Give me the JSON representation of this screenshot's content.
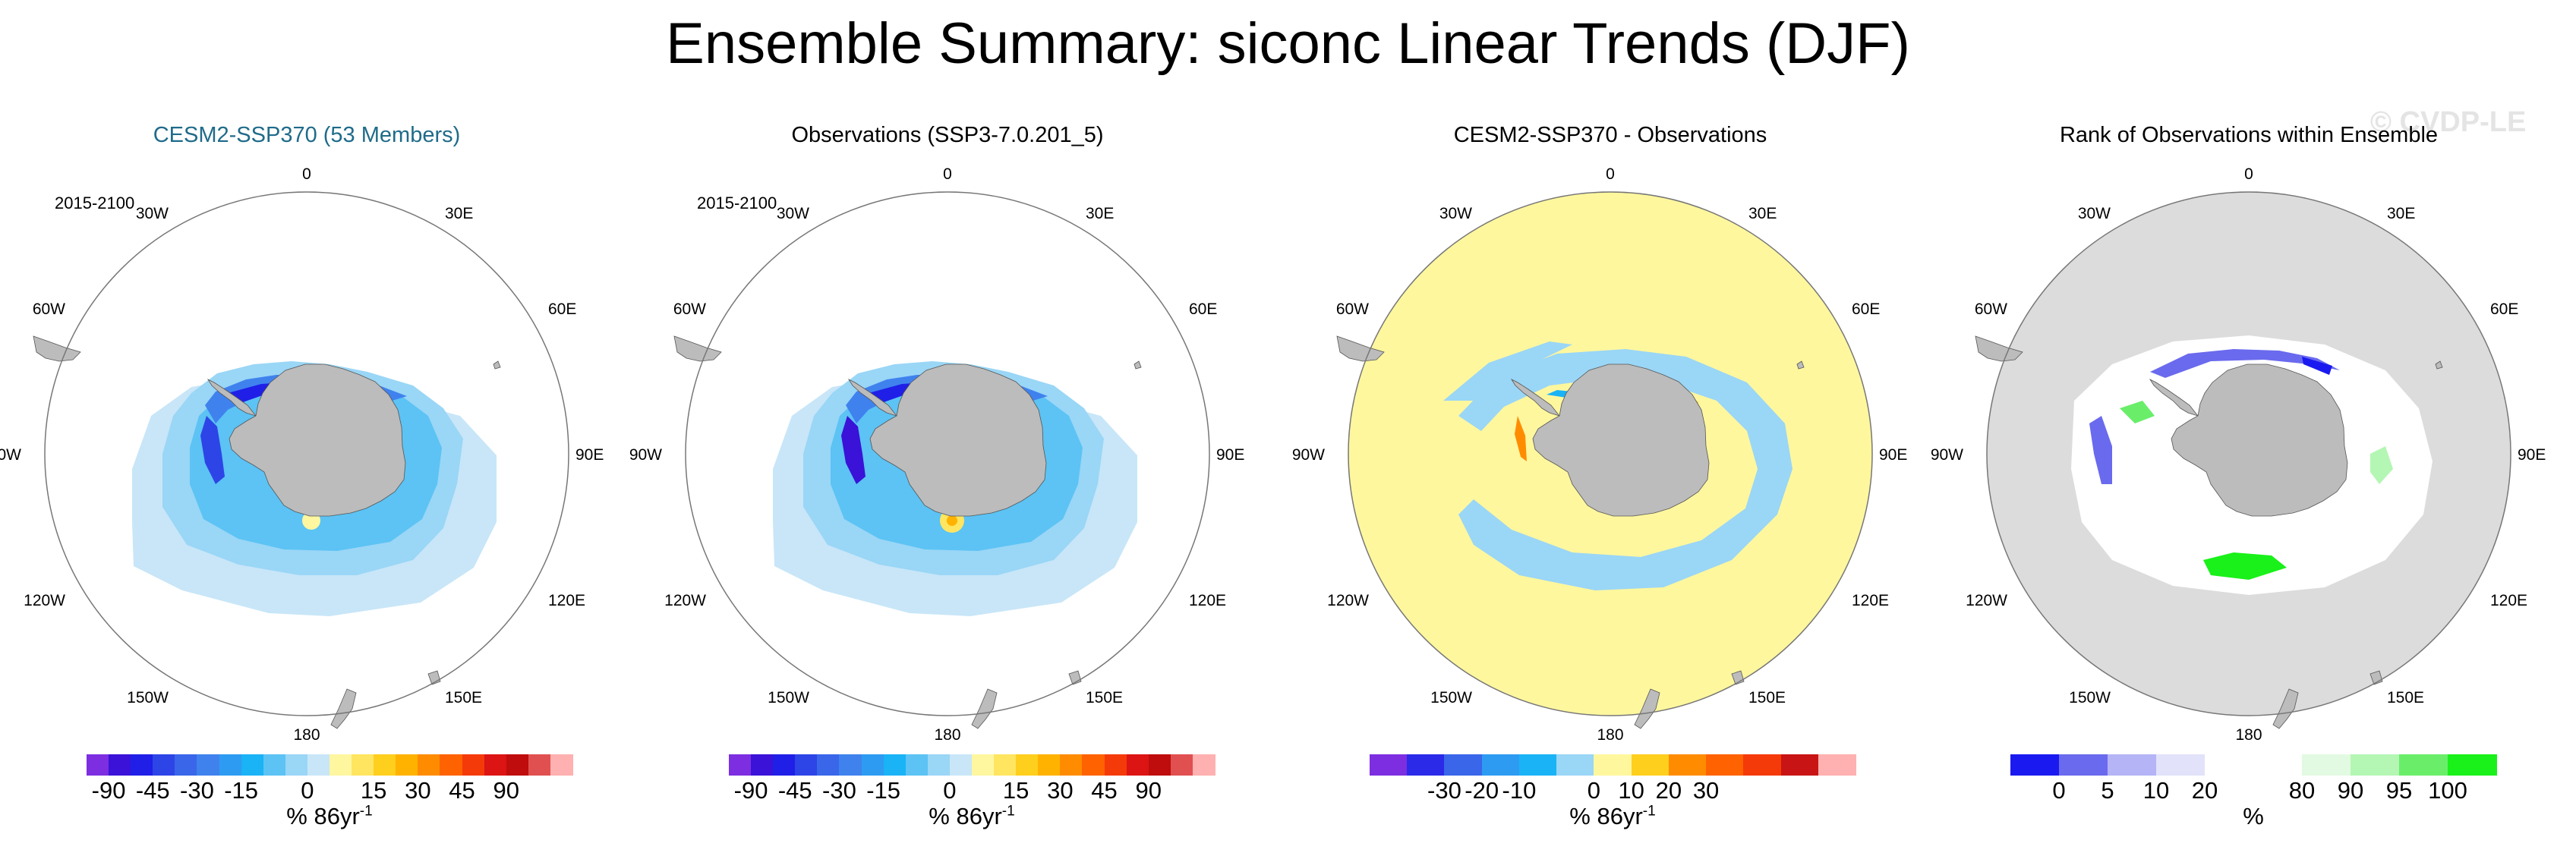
{
  "title": "Ensemble Summary: siconc Linear Trends (DJF)",
  "watermark": "© CVDP-LE",
  "period": "2015-2100",
  "map_labels": {
    "top": "0",
    "bottom": "180",
    "left": "90W",
    "right": "90E",
    "upper_left_1": "30W",
    "upper_right_1": "30E",
    "upper_left_2": "60W",
    "upper_right_2": "60E",
    "lower_left_1": "120W",
    "lower_right_1": "120E",
    "lower_left_2": "150W",
    "lower_right_2": "150E"
  },
  "colors": {
    "land": "#bcbcbc",
    "ocean_zero": "#ffffff",
    "diff_background": "#fff79e",
    "rank_background": "#dcdcdc",
    "title_blue": "#1f6b8a"
  },
  "panels": [
    {
      "title": "CESM2-SSP370 (53 Members)",
      "show_period": true
    },
    {
      "title": "Observations (SSP3-7.0.201_5)",
      "show_period": true
    },
    {
      "title": "CESM2-SSP370 - Observations",
      "show_period": false
    },
    {
      "title": "Rank of Observations within Ensemble",
      "show_period": false
    }
  ],
  "colorbars": {
    "trend": {
      "colors": [
        "#7d2ee0",
        "#3a12d8",
        "#1f1fe8",
        "#2d45e6",
        "#3a66ea",
        "#3f82ee",
        "#2e9bf2",
        "#1ab3f6",
        "#5cc3f4",
        "#9ad6f6",
        "#c8e6f8",
        "#fff6a0",
        "#ffe560",
        "#ffcf1e",
        "#ffb300",
        "#ff8c00",
        "#ff6200",
        "#f53a0a",
        "#dc1414",
        "#bf0c0c",
        "#e05050",
        "#ffb0b0"
      ],
      "ticks": [
        "-90",
        "-45",
        "-30",
        "-15",
        "0",
        "15",
        "30",
        "45",
        "90"
      ],
      "tick_positions": [
        1,
        3,
        5,
        7,
        10,
        13,
        15,
        17,
        19
      ],
      "units": "% 86yr",
      "units_exp": "-1"
    },
    "difference": {
      "colors": [
        "#7d2ee0",
        "#2a2ae8",
        "#3a66ea",
        "#2e9bf2",
        "#1ab3f6",
        "#9ad6f6",
        "#fff79e",
        "#ffcf1e",
        "#ff8c00",
        "#ff6200",
        "#f53a0a",
        "#c81414",
        "#ffb0b0"
      ],
      "ticks": [
        "-30",
        "-20",
        "-10",
        "0",
        "10",
        "20",
        "30"
      ],
      "tick_positions": [
        2,
        3,
        4,
        6,
        7,
        8,
        9
      ],
      "units": "% 86yr",
      "units_exp": "-1"
    },
    "rank": {
      "colors": [
        "#1a1af0",
        "#6a6aee",
        "#b4b4f6",
        "#e2e2fa",
        "#ffffff",
        "#ffffff",
        "#e2fae2",
        "#b4f6b4",
        "#6aee6a",
        "#1af01a"
      ],
      "ticks": [
        "0",
        "5",
        "10",
        "20",
        "80",
        "90",
        "95",
        "100"
      ],
      "tick_positions": [
        1,
        2,
        3,
        4,
        6,
        7,
        8,
        9
      ],
      "units": "%"
    }
  },
  "chart_data": [
    {
      "type": "heatmap",
      "title": "CESM2-SSP370 (53 Members)",
      "period": "2015-2100",
      "variable": "siconc linear trend (DJF)",
      "units": "% 86yr-1",
      "levels": [
        -90,
        -45,
        -30,
        -15,
        0,
        15,
        30,
        45,
        90
      ]
    },
    {
      "type": "heatmap",
      "title": "Observations (SSP3-7.0.201_5)",
      "period": "2015-2100",
      "variable": "siconc linear trend (DJF)",
      "units": "% 86yr-1",
      "levels": [
        -90,
        -45,
        -30,
        -15,
        0,
        15,
        30,
        45,
        90
      ]
    },
    {
      "type": "heatmap",
      "title": "CESM2-SSP370 - Observations",
      "variable": "siconc linear trend difference",
      "units": "% 86yr-1",
      "levels": [
        -30,
        -20,
        -10,
        0,
        10,
        20,
        30
      ]
    },
    {
      "type": "heatmap",
      "title": "Rank of Observations within Ensemble",
      "units": "%",
      "levels": [
        0,
        5,
        10,
        20,
        80,
        90,
        95,
        100
      ]
    }
  ]
}
